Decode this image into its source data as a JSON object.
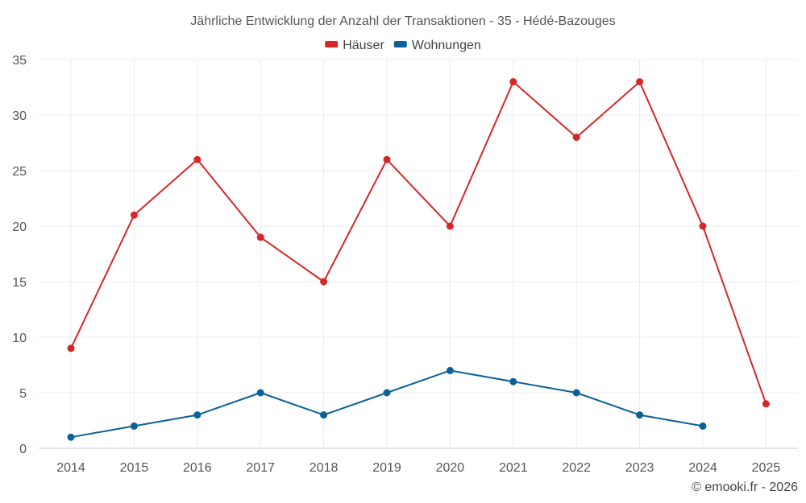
{
  "chart_data": {
    "type": "line",
    "title": "Jährliche Entwicklung der Anzahl der Transaktionen - 35 - Hédé-Bazouges",
    "categories": [
      "2014",
      "2015",
      "2016",
      "2017",
      "2018",
      "2019",
      "2020",
      "2021",
      "2022",
      "2023",
      "2024",
      "2025"
    ],
    "series": [
      {
        "name": "Häuser",
        "color": "#d62728",
        "values": [
          9,
          21,
          26,
          19,
          15,
          26,
          20,
          33,
          28,
          33,
          20,
          4
        ]
      },
      {
        "name": "Wohnungen",
        "color": "#0b6197",
        "values": [
          1,
          2,
          3,
          5,
          3,
          5,
          7,
          6,
          5,
          3,
          2,
          null
        ]
      }
    ],
    "ylim": [
      0,
      35
    ],
    "yticks": [
      0,
      5,
      10,
      15,
      20,
      25,
      30,
      35
    ],
    "grid": true,
    "legend_position": "top-center",
    "xlabel": "",
    "ylabel": ""
  },
  "credit": "© emooki.fr - 2026"
}
